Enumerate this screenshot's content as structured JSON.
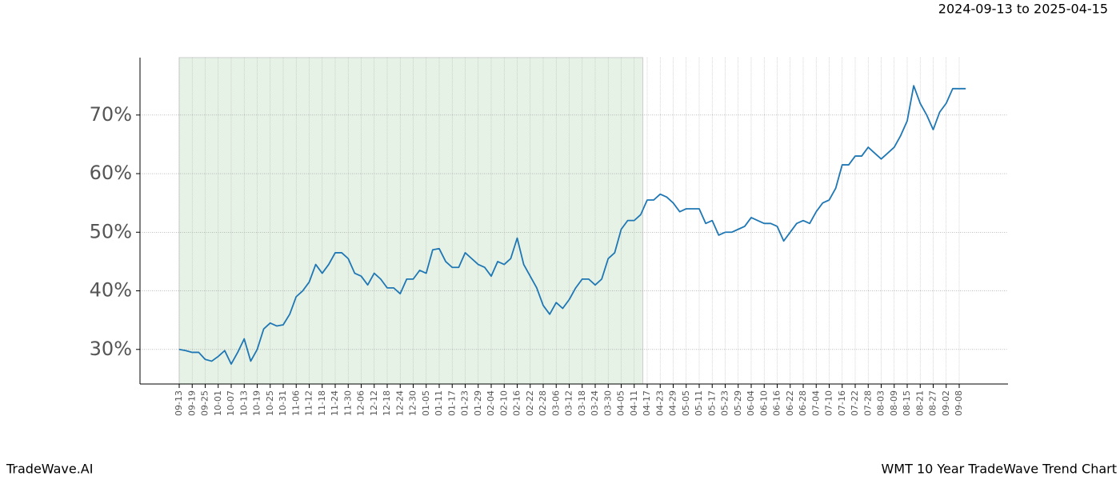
{
  "chart_data": {
    "type": "line",
    "title": "2024-09-13 to 2025-04-15",
    "footer_left": "TradeWave.AI",
    "footer_right": "WMT 10 Year TradeWave Trend Chart",
    "shaded": {
      "start": "09-13",
      "end": "04-15",
      "color": "#e6f2e6"
    },
    "categories": [
      "09-13",
      null,
      "09-19",
      null,
      "09-25",
      null,
      "10-01",
      null,
      "10-07",
      null,
      "10-13",
      null,
      "10-19",
      null,
      "10-25",
      null,
      "10-31",
      null,
      "11-06",
      null,
      "11-12",
      null,
      "11-18",
      null,
      "11-24",
      null,
      "11-30",
      null,
      "12-06",
      null,
      "12-12",
      null,
      "12-18",
      null,
      "12-24",
      null,
      "12-30",
      null,
      "01-05",
      null,
      "01-11",
      null,
      "01-17",
      null,
      "01-23",
      null,
      "01-29",
      null,
      "02-04",
      null,
      "02-10",
      null,
      "02-16",
      null,
      "02-22",
      null,
      "02-28",
      null,
      "03-06",
      null,
      "03-12",
      null,
      "03-18",
      null,
      "03-24",
      null,
      "03-30",
      null,
      "04-05",
      null,
      "04-11",
      null,
      "04-17",
      null,
      "04-23",
      null,
      "04-29",
      null,
      "05-05",
      null,
      "05-11",
      null,
      "05-17",
      null,
      "05-23",
      null,
      "05-29",
      null,
      "06-04",
      null,
      "06-10",
      null,
      "06-16",
      null,
      "06-22",
      null,
      "06-28",
      null,
      "07-04",
      null,
      "07-10",
      null,
      "07-16",
      null,
      "07-22",
      null,
      "07-28",
      null,
      "08-03",
      null,
      "08-09",
      null,
      "08-15",
      null,
      "08-21",
      null,
      "08-27",
      null,
      "09-02",
      null,
      "09-08",
      null
    ],
    "series": [
      {
        "color": "#1f77b4",
        "values": [
          30.0,
          29.8,
          29.5,
          29.5,
          28.3,
          28.0,
          28.8,
          29.8,
          27.5,
          29.5,
          31.8,
          28.0,
          30.0,
          33.5,
          34.5,
          34.0,
          34.2,
          36.0,
          39.0,
          40.0,
          41.5,
          44.5,
          43.0,
          44.5,
          46.5,
          46.5,
          45.5,
          43.0,
          42.5,
          41.0,
          43.0,
          42.0,
          40.5,
          40.5,
          39.5,
          42.0,
          42.0,
          43.5,
          43.0,
          47.0,
          47.2,
          45.0,
          44.0,
          44.0,
          46.5,
          45.5,
          44.5,
          44.0,
          42.5,
          45.0,
          44.5,
          45.5,
          49.0,
          44.5,
          42.5,
          40.5,
          37.5,
          36.0,
          38.0,
          37.0,
          38.5,
          40.5,
          42.0,
          42.0,
          41.0,
          42.0,
          45.5,
          46.5,
          50.5,
          52.0,
          52.0,
          53.0,
          55.5,
          55.5,
          56.5,
          56.0,
          55.0,
          53.5,
          54.0,
          54.0,
          54.0,
          51.5,
          52.0,
          49.5,
          50.0,
          50.0,
          50.5,
          51.0,
          52.5,
          52.0,
          51.5,
          51.5,
          51.0,
          48.5,
          50.0,
          51.5,
          52.0,
          51.5,
          53.5,
          55.0,
          55.5,
          57.5,
          61.5,
          61.5,
          63.0,
          63.0,
          64.5,
          63.5,
          62.5,
          63.5,
          64.5,
          66.5,
          69.0,
          75.0,
          72.0,
          70.0,
          67.5,
          70.5,
          72.0,
          74.5,
          74.5,
          74.5
        ]
      }
    ],
    "ylim": [
      24.1,
      79.8
    ],
    "yticks": [
      {
        "value": 30,
        "label": "30%"
      },
      {
        "value": 40,
        "label": "40%"
      },
      {
        "value": 50,
        "label": "50%"
      },
      {
        "value": 60,
        "label": "60%"
      },
      {
        "value": 70,
        "label": "70%"
      }
    ],
    "grid": true
  }
}
